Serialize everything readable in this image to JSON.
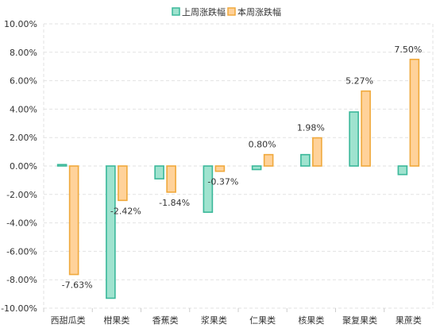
{
  "chart_data": {
    "type": "bar",
    "categories": [
      "西甜瓜类",
      "柑果类",
      "香蕉类",
      "浆果类",
      "仁果类",
      "核果类",
      "聚复果类",
      "果蔗类"
    ],
    "series": [
      {
        "name": "上周涨跌幅",
        "values": [
          0.1,
          -9.3,
          -0.9,
          -3.25,
          -0.25,
          0.8,
          3.8,
          -0.6
        ],
        "fill": "#9fe3cf",
        "stroke": "#3bb89a",
        "data_labels": [
          "",
          "",
          "",
          "",
          "",
          "",
          "",
          ""
        ]
      },
      {
        "name": "本周涨跌幅",
        "values": [
          -7.63,
          -2.42,
          -1.84,
          -0.37,
          0.8,
          1.98,
          5.27,
          7.5
        ],
        "fill": "#ffd29a",
        "stroke": "#f0a93c",
        "data_labels": [
          "-7.63%",
          "-2.42%",
          "-1.84%",
          "-0.37%",
          "0.80%",
          "1.98%",
          "5.27%",
          "7.50%"
        ]
      }
    ],
    "ylim": [
      -10,
      10
    ],
    "y_ticks": [
      "10.00%",
      "8.00%",
      "6.00%",
      "4.00%",
      "2.00%",
      "0.00%",
      "-2.00%",
      "-4.00%",
      "-6.00%",
      "-8.00%",
      "-10.00%"
    ],
    "grid": true,
    "legend_position": "top-center",
    "title": "",
    "xlabel": "",
    "ylabel": ""
  }
}
